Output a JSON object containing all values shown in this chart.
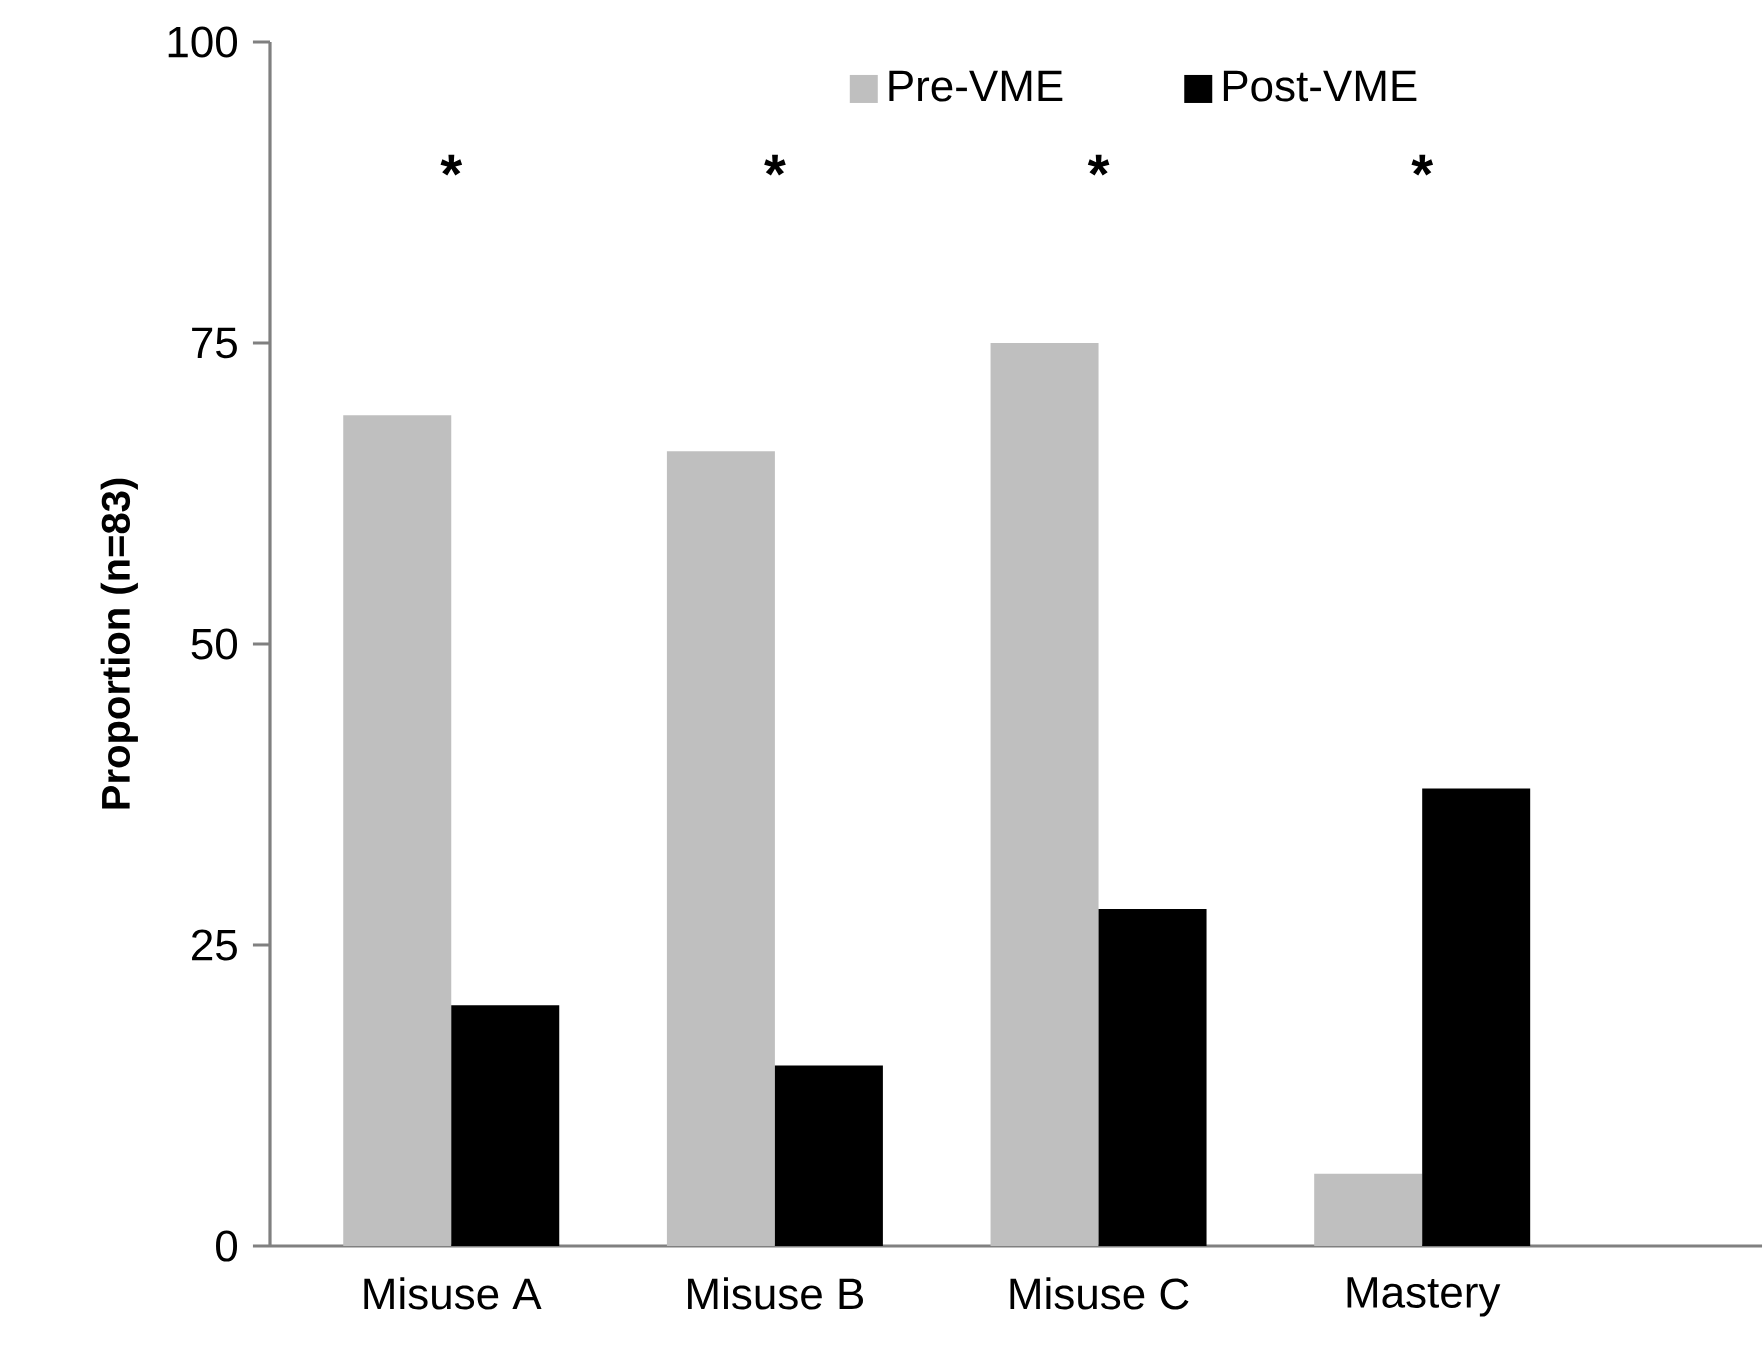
{
  "chart_data": {
    "type": "bar",
    "ylabel": "Proportion (n=83)",
    "categories": [
      "Misuse A",
      "Misuse B",
      "Misuse C",
      "Mastery"
    ],
    "series": [
      {
        "name": "Pre-VME",
        "color": "#bfbfbf",
        "values": [
          69,
          66,
          75,
          6
        ]
      },
      {
        "name": "Post-VME",
        "color": "#000000",
        "values": [
          20,
          15,
          28,
          38
        ]
      }
    ],
    "ylim": [
      0,
      100
    ],
    "yticks": [
      0,
      25,
      50,
      75,
      100
    ],
    "grid": false,
    "legend": "top",
    "annotations": [
      "*",
      "*",
      "*",
      "*"
    ]
  }
}
